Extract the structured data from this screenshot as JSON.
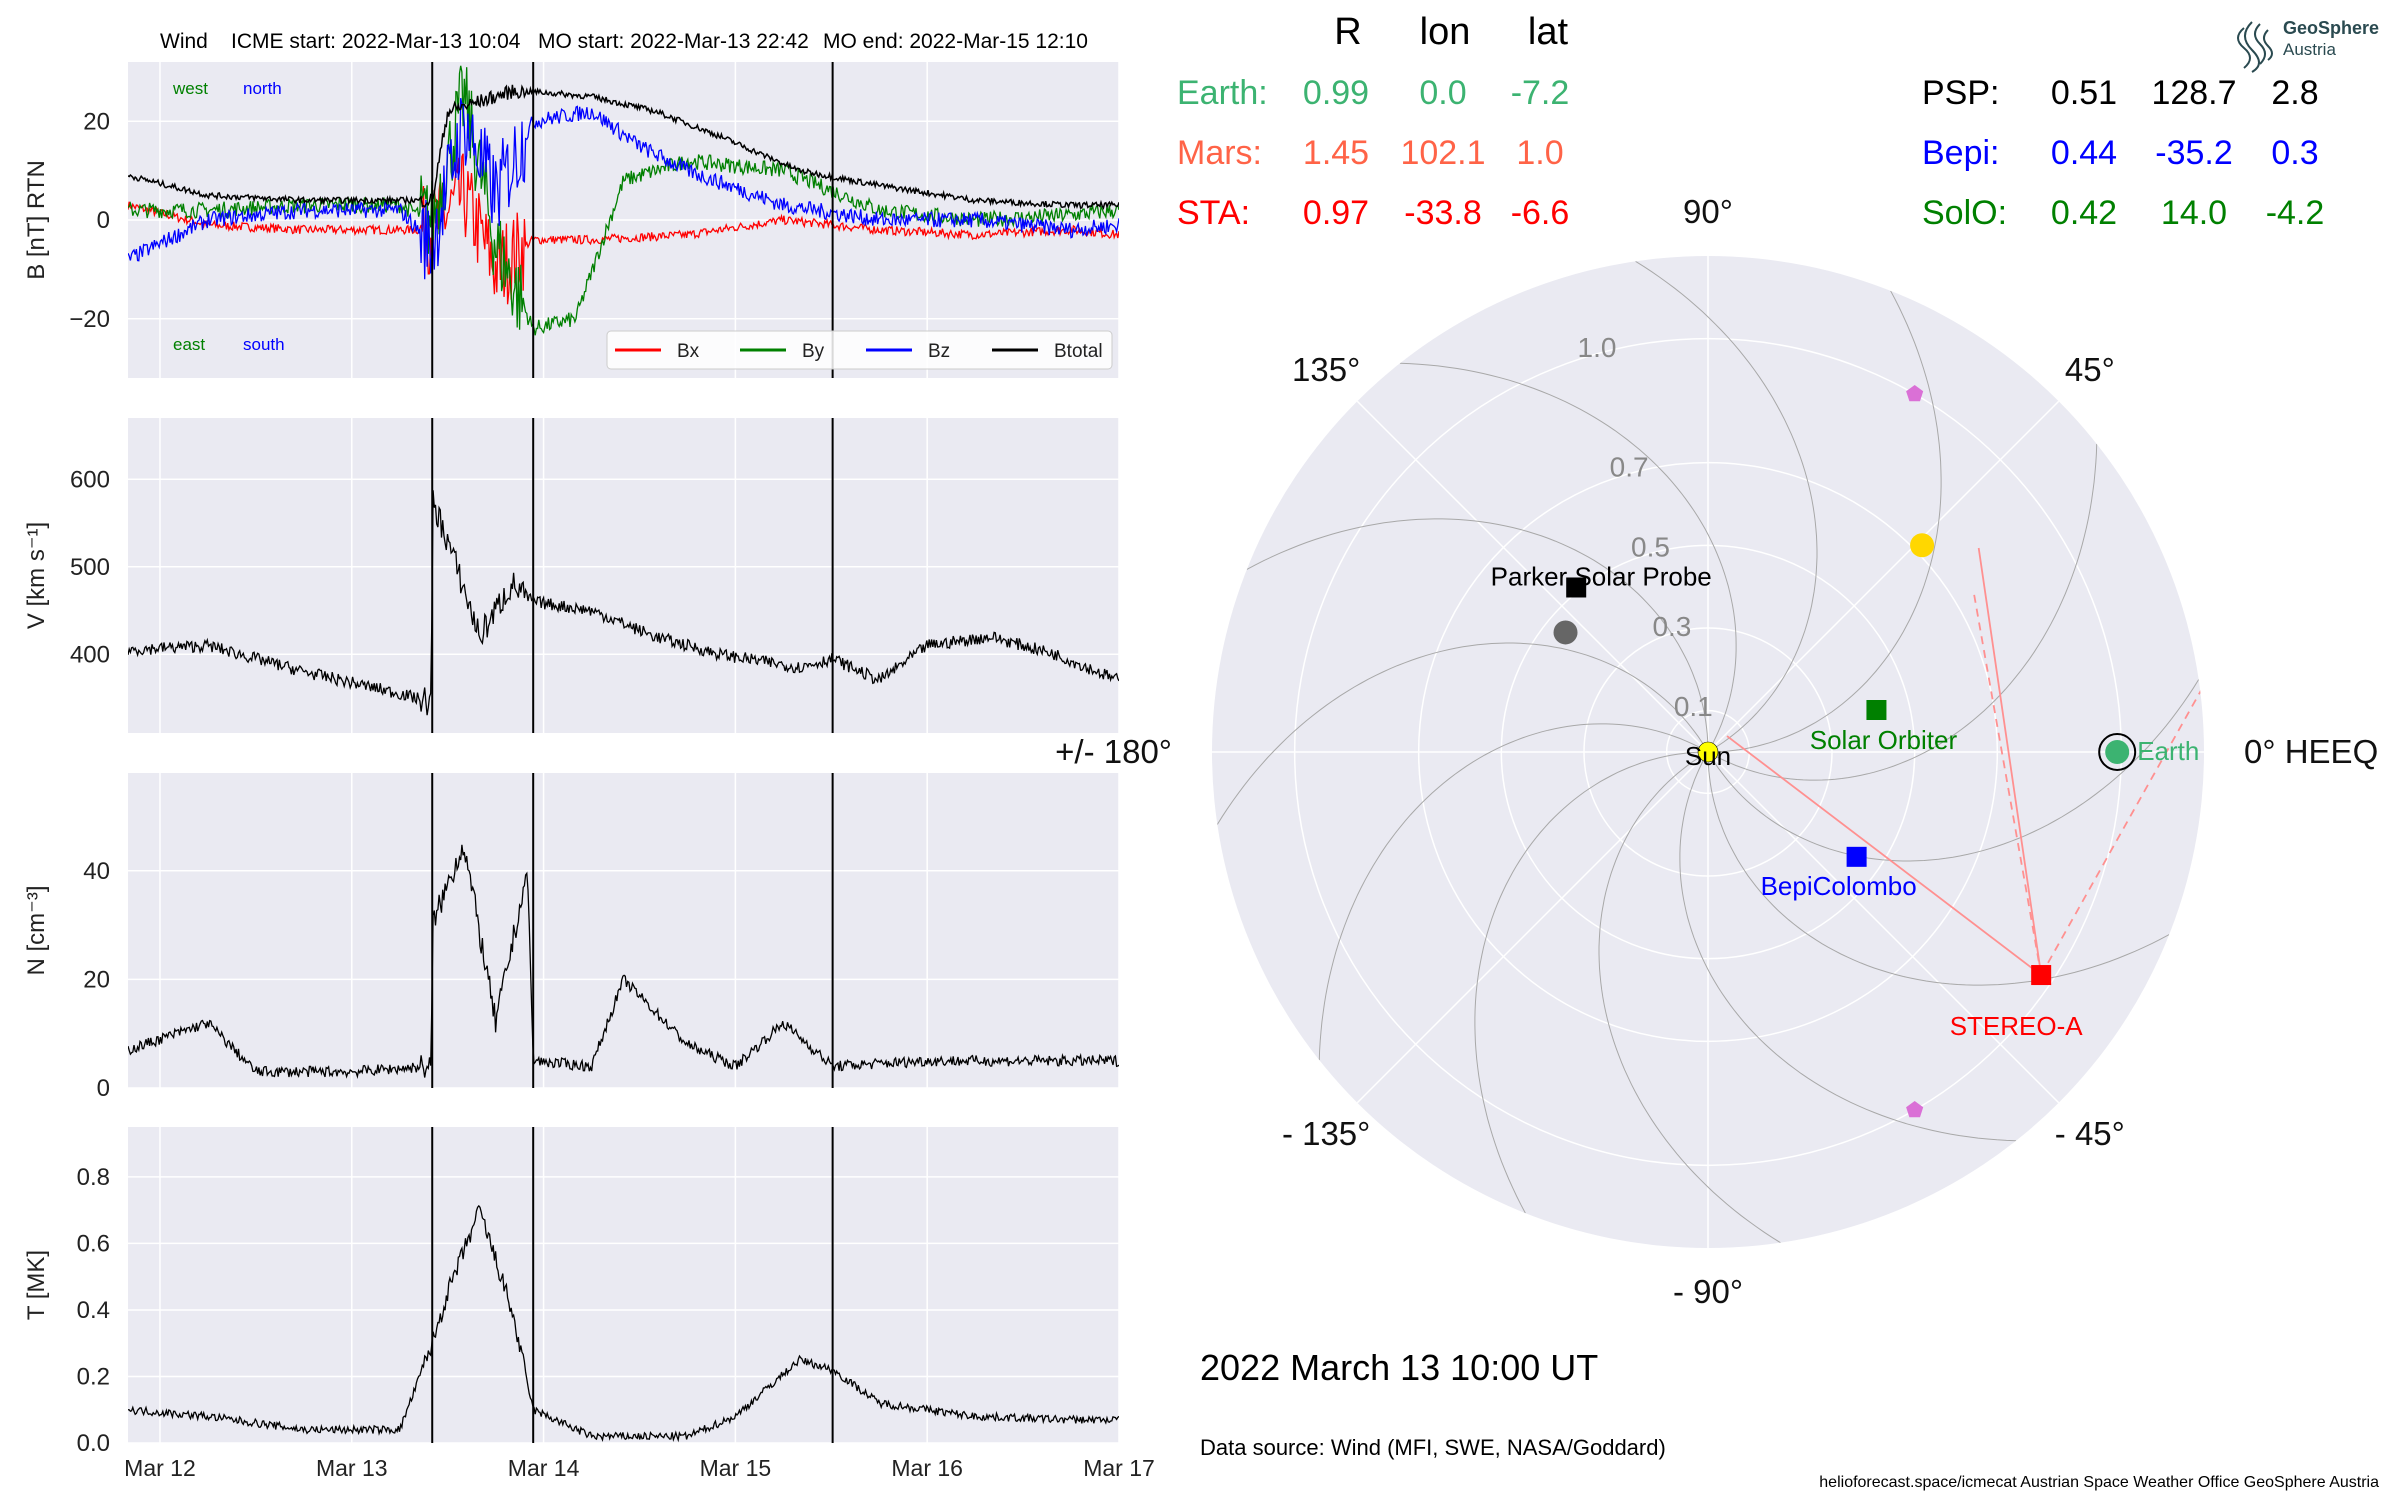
{
  "header": {
    "label_sc": "Wind",
    "icme_start": "ICME start: 2022-Mar-13 10:04",
    "mo_start": "MO start: 2022-Mar-13 22:42",
    "mo_end": "MO end: 2022-Mar-15 12:10"
  },
  "timestamp": "2022 March 13  10:00 UT",
  "data_source": "Data source: Wind (MFI, SWE, NASA/Goddard)",
  "footer": "helioforecast.space/icmecat   Austrian Space Weather Office   GeoSphere Austria",
  "logo": {
    "line1": "GeoSphere",
    "line2": "Austria"
  },
  "colors": {
    "bx": "#ff0000",
    "by": "#008000",
    "bz": "#0000ff",
    "bt": "#000000",
    "panel_bg": "#eaeaf2",
    "earth": "#3cb371",
    "mars": "#ff6347",
    "sta": "#ff0000",
    "psp": "#000000",
    "bepi": "#0000ff",
    "solo": "#008000",
    "sun": "#ffff00",
    "planet": "#ffd700",
    "pentagon": "#da70d6"
  },
  "position_table": {
    "headers": [
      "R",
      "lon",
      "lat"
    ],
    "rows_left": [
      {
        "name": "Earth:",
        "r": "0.99",
        "lon": "0.0",
        "lat": "-7.2",
        "color": "#3cb371"
      },
      {
        "name": "Mars:",
        "r": "1.45",
        "lon": "102.1",
        "lat": "1.0",
        "color": "#ff6347"
      },
      {
        "name": "STA:",
        "r": "0.97",
        "lon": "-33.8",
        "lat": "-6.6",
        "color": "#ff0000"
      }
    ],
    "rows_right": [
      {
        "name": "PSP:",
        "r": "0.51",
        "lon": "128.7",
        "lat": "2.8",
        "color": "#000000"
      },
      {
        "name": "Bepi:",
        "r": "0.44",
        "lon": "-35.2",
        "lat": "0.3",
        "color": "#0000ff"
      },
      {
        "name": "SolO:",
        "r": "0.42",
        "lon": "14.0",
        "lat": "-4.2",
        "color": "#008000"
      }
    ]
  },
  "chart_data": [
    {
      "type": "line",
      "panel": "magnetic field",
      "ylabel": "B [nT] RTN",
      "ylim": [
        -32,
        32
      ],
      "yticks": [
        -20,
        0,
        20
      ],
      "ytick_labels": [
        "−20",
        "0",
        "20"
      ],
      "xlim_days": [
        "2022-03-11T20:00",
        "2022-03-17T00:00"
      ],
      "xticks": [
        "Mar 12",
        "Mar 13",
        "Mar 14",
        "Mar 15",
        "Mar 16",
        "Mar 17"
      ],
      "event_lines": [
        "2022-03-13T10:04",
        "2022-03-13T22:42",
        "2022-03-15T12:10"
      ],
      "annotations": {
        "top_left": "west",
        "top_right": "north",
        "bottom_left": "east",
        "bottom_right": "south"
      },
      "legend": [
        "Bx",
        "By",
        "Bz",
        "Btotal"
      ],
      "legend_position": "lower right",
      "series": [
        {
          "name": "Bx",
          "x": [
            "2022-03-11T20:00",
            "2022-03-12T06:00",
            "2022-03-12T18:00",
            "2022-03-13T06:00",
            "2022-03-13T10:04",
            "2022-03-13T14:00",
            "2022-03-13T18:00",
            "2022-03-13T22:42",
            "2022-03-14T06:00",
            "2022-03-14T18:00",
            "2022-03-15T06:00",
            "2022-03-15T18:00",
            "2022-03-16T06:00",
            "2022-03-16T18:00",
            "2022-03-17T00:00"
          ],
          "values": [
            3,
            -1,
            -2,
            -2,
            -2,
            5,
            -10,
            -4,
            -4,
            -3,
            0,
            -2,
            -3,
            -2,
            -3
          ]
        },
        {
          "name": "By",
          "x": [
            "2022-03-11T20:00",
            "2022-03-12T06:00",
            "2022-03-12T18:00",
            "2022-03-13T06:00",
            "2022-03-13T10:04",
            "2022-03-13T14:00",
            "2022-03-13T18:00",
            "2022-03-13T22:42",
            "2022-03-14T04:00",
            "2022-03-14T10:00",
            "2022-03-14T18:00",
            "2022-03-15T06:00",
            "2022-03-15T18:00",
            "2022-03-16T06:00",
            "2022-03-16T18:00",
            "2022-03-17T00:00"
          ],
          "values": [
            2,
            2,
            3,
            3,
            0,
            25,
            -5,
            -22,
            -20,
            8,
            12,
            10,
            2,
            0,
            1,
            2
          ]
        },
        {
          "name": "Bz",
          "x": [
            "2022-03-11T20:00",
            "2022-03-12T06:00",
            "2022-03-12T18:00",
            "2022-03-13T06:00",
            "2022-03-13T10:04",
            "2022-03-13T14:00",
            "2022-03-13T18:00",
            "2022-03-13T22:42",
            "2022-03-14T06:00",
            "2022-03-14T12:00",
            "2022-03-14T18:00",
            "2022-03-15T06:00",
            "2022-03-15T18:00",
            "2022-03-16T06:00",
            "2022-03-16T18:00",
            "2022-03-17T00:00"
          ],
          "values": [
            -8,
            0,
            2,
            2,
            -5,
            20,
            5,
            20,
            22,
            15,
            10,
            3,
            0,
            0,
            -2,
            -1
          ]
        },
        {
          "name": "Btotal",
          "x": [
            "2022-03-11T20:00",
            "2022-03-12T06:00",
            "2022-03-12T18:00",
            "2022-03-13T06:00",
            "2022-03-13T10:04",
            "2022-03-13T12:00",
            "2022-03-13T20:00",
            "2022-03-13T22:42",
            "2022-03-14T06:00",
            "2022-03-14T14:00",
            "2022-03-14T22:00",
            "2022-03-15T08:00",
            "2022-03-15T18:00",
            "2022-03-16T06:00",
            "2022-03-16T18:00",
            "2022-03-17T00:00"
          ],
          "values": [
            9,
            5,
            4,
            4,
            4,
            22,
            26,
            26,
            25,
            22,
            17,
            10,
            7,
            4,
            3,
            3
          ]
        }
      ]
    },
    {
      "type": "line",
      "panel": "speed",
      "ylabel": "V [km s⁻¹]",
      "ylim": [
        310,
        670
      ],
      "yticks": [
        400,
        500,
        600
      ],
      "ytick_labels": [
        "400",
        "500",
        "600"
      ],
      "series": [
        {
          "name": "",
          "x": [
            "2022-03-11T20:00",
            "2022-03-12T06:00",
            "2022-03-12T18:00",
            "2022-03-13T06:00",
            "2022-03-13T10:00",
            "2022-03-13T10:04",
            "2022-03-13T12:00",
            "2022-03-13T16:00",
            "2022-03-13T20:00",
            "2022-03-13T22:42",
            "2022-03-14T06:00",
            "2022-03-14T14:00",
            "2022-03-14T22:00",
            "2022-03-15T08:00",
            "2022-03-15T12:10",
            "2022-03-15T18:00",
            "2022-03-16T00:00",
            "2022-03-16T08:00",
            "2022-03-16T16:00",
            "2022-03-17T00:00"
          ],
          "values": [
            405,
            410,
            380,
            355,
            345,
            575,
            530,
            420,
            480,
            460,
            450,
            420,
            400,
            385,
            395,
            370,
            410,
            420,
            400,
            370
          ]
        }
      ]
    },
    {
      "type": "line",
      "panel": "density",
      "ylabel": "N [cm⁻³]",
      "ylim": [
        0,
        58
      ],
      "yticks": [
        0,
        20,
        40
      ],
      "ytick_labels": [
        "0",
        "20",
        "40"
      ],
      "series": [
        {
          "name": "",
          "x": [
            "2022-03-11T20:00",
            "2022-03-12T06:00",
            "2022-03-12T12:00",
            "2022-03-13T00:00",
            "2022-03-13T10:00",
            "2022-03-13T10:04",
            "2022-03-13T14:00",
            "2022-03-13T18:00",
            "2022-03-13T22:00",
            "2022-03-13T22:42",
            "2022-03-14T06:00",
            "2022-03-14T10:00",
            "2022-03-14T18:00",
            "2022-03-15T00:00",
            "2022-03-15T06:00",
            "2022-03-15T12:10",
            "2022-03-16T00:00",
            "2022-03-16T12:00",
            "2022-03-17T00:00"
          ],
          "values": [
            7,
            12,
            3,
            3,
            4,
            30,
            45,
            12,
            40,
            5,
            4,
            20,
            8,
            4,
            12,
            4,
            5,
            5,
            5
          ]
        }
      ]
    },
    {
      "type": "line",
      "panel": "temperature",
      "ylabel": "T [MK]",
      "ylim": [
        0,
        0.95
      ],
      "yticks": [
        0,
        0.2,
        0.4,
        0.6,
        0.8
      ],
      "ytick_labels": [
        "0.0",
        "0.2",
        "0.4",
        "0.6",
        "0.8"
      ],
      "series": [
        {
          "name": "",
          "x": [
            "2022-03-11T20:00",
            "2022-03-12T06:00",
            "2022-03-12T18:00",
            "2022-03-13T06:00",
            "2022-03-13T10:04",
            "2022-03-13T12:00",
            "2022-03-13T16:00",
            "2022-03-13T20:00",
            "2022-03-13T22:42",
            "2022-03-14T06:00",
            "2022-03-14T18:00",
            "2022-03-15T00:00",
            "2022-03-15T08:00",
            "2022-03-15T12:10",
            "2022-03-15T18:00",
            "2022-03-16T06:00",
            "2022-03-16T18:00",
            "2022-03-17T00:00"
          ],
          "values": [
            0.1,
            0.08,
            0.04,
            0.04,
            0.3,
            0.45,
            0.7,
            0.4,
            0.1,
            0.02,
            0.02,
            0.08,
            0.25,
            0.22,
            0.12,
            0.08,
            0.07,
            0.07
          ]
        }
      ]
    },
    {
      "type": "scatter",
      "panel": "polar position plot",
      "coordinate_system": "0° HEEQ",
      "rlim": [
        0,
        1.2
      ],
      "r_ticks": [
        0.1,
        0.3,
        0.5,
        0.7,
        1.0
      ],
      "r_tick_labels": [
        "0.1",
        "0.3",
        "0.5",
        "0.7",
        "1.0"
      ],
      "angle_labels": [
        {
          "deg": 0,
          "label": "0° HEEQ"
        },
        {
          "deg": 45,
          "label": "45°"
        },
        {
          "deg": 90,
          "label": "90°"
        },
        {
          "deg": 135,
          "label": "135°"
        },
        {
          "deg": 180,
          "label": "+/- 180°"
        },
        {
          "deg": -135,
          "label": "- 135°"
        },
        {
          "deg": -90,
          "label": "- 90°"
        },
        {
          "deg": -45,
          "label": "- 45°"
        }
      ],
      "objects": [
        {
          "name": "Sun",
          "label": "Sun",
          "r": 0.0,
          "lon": 0.0,
          "marker": "circle",
          "color": "#ffff00"
        },
        {
          "name": "Earth",
          "label": "Earth",
          "r": 0.99,
          "lon": 0.0,
          "marker": "circle",
          "color": "#3cb371"
        },
        {
          "name": "STA",
          "label": "STEREO-A",
          "r": 0.97,
          "lon": -33.8,
          "marker": "square",
          "color": "#ff0000"
        },
        {
          "name": "PSP",
          "label": "Parker Solar Probe",
          "r": 0.51,
          "lon": 128.7,
          "marker": "square",
          "color": "#000000"
        },
        {
          "name": "Bepi",
          "label": "BepiColombo",
          "r": 0.44,
          "lon": -35.2,
          "marker": "square",
          "color": "#0000ff"
        },
        {
          "name": "SolO",
          "label": "Solar Orbiter",
          "r": 0.42,
          "lon": 14.0,
          "marker": "square",
          "color": "#008000"
        },
        {
          "name": "Venus",
          "label": "",
          "r": 0.72,
          "lon": 44,
          "marker": "circle",
          "color": "#ffd700"
        },
        {
          "name": "Mercury",
          "label": "",
          "r": 0.45,
          "lon": 140,
          "marker": "circle",
          "color": "#666666"
        },
        {
          "name": "L4",
          "label": "",
          "r": 1.0,
          "lon": 60,
          "marker": "pentagon",
          "color": "#da70d6"
        },
        {
          "name": "L5",
          "label": "",
          "r": 1.0,
          "lon": -60,
          "marker": "pentagon",
          "color": "#da70d6"
        }
      ]
    }
  ]
}
